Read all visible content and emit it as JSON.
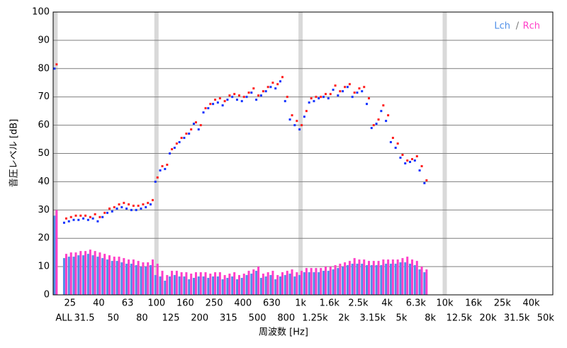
{
  "chart_data": {
    "type": "spectrum",
    "x_label": "周波数 [Hz]",
    "y_label": "音圧レベル [dB]",
    "xlim": [
      -0.5,
      103.5
    ],
    "ylim": [
      0,
      100
    ],
    "yticks": [
      0,
      10,
      20,
      30,
      40,
      50,
      60,
      70,
      80,
      90,
      100
    ],
    "xticks": [
      {
        "value": 0,
        "label": "ALL"
      },
      {
        "value": 3,
        "label": "25"
      },
      {
        "value": 6,
        "label": "31.5"
      },
      {
        "value": 9,
        "label": "40"
      },
      {
        "value": 12,
        "label": "50"
      },
      {
        "value": 15,
        "label": "63"
      },
      {
        "value": 18,
        "label": "80"
      },
      {
        "value": 21,
        "label": "100"
      },
      {
        "value": 24,
        "label": "125"
      },
      {
        "value": 27,
        "label": "160"
      },
      {
        "value": 30,
        "label": "200"
      },
      {
        "value": 33,
        "label": "250"
      },
      {
        "value": 36,
        "label": "315"
      },
      {
        "value": 39,
        "label": "400"
      },
      {
        "value": 42,
        "label": "500"
      },
      {
        "value": 45,
        "label": "630"
      },
      {
        "value": 48,
        "label": "800"
      },
      {
        "value": 51,
        "label": "1k"
      },
      {
        "value": 54,
        "label": "1.25k"
      },
      {
        "value": 57,
        "label": "1.6k"
      },
      {
        "value": 60,
        "label": "2k"
      },
      {
        "value": 63,
        "label": "2.5k"
      },
      {
        "value": 66,
        "label": "3.15k"
      },
      {
        "value": 69,
        "label": "4k"
      },
      {
        "value": 72,
        "label": "5k"
      },
      {
        "value": 75,
        "label": "6.3k"
      },
      {
        "value": 78,
        "label": "8k"
      },
      {
        "value": 81,
        "label": "10k"
      },
      {
        "value": 84,
        "label": "12.5k"
      },
      {
        "value": 87,
        "label": "16k"
      },
      {
        "value": 90,
        "label": "20k"
      },
      {
        "value": 93,
        "label": "25k"
      },
      {
        "value": 96,
        "label": "31.5k"
      },
      {
        "value": 99,
        "label": "40k"
      },
      {
        "value": 102,
        "label": "50k"
      }
    ],
    "xbands": [
      0,
      21,
      51,
      81
    ],
    "band_color": "#d9d9d9",
    "grid": true,
    "legend_separator": "/",
    "legend_position": "top-right",
    "x": [
      0,
      2,
      3,
      4,
      5,
      6,
      7,
      8,
      9,
      10,
      11,
      12,
      13,
      14,
      15,
      16,
      17,
      18,
      19,
      20,
      21,
      22,
      23,
      24,
      25,
      26,
      27,
      28,
      29,
      30,
      31,
      32,
      33,
      34,
      35,
      36,
      37,
      38,
      39,
      40,
      41,
      42,
      43,
      44,
      45,
      46,
      47,
      48,
      49,
      50,
      51,
      52,
      53,
      54,
      55,
      56,
      57,
      58,
      59,
      60,
      61,
      62,
      63,
      64,
      65,
      66,
      67,
      68,
      69,
      70,
      71,
      72,
      73,
      74,
      75,
      76,
      77
    ],
    "series": [
      {
        "name": "Lch",
        "color": "#1030ff",
        "bar_color": "#4f8fe8",
        "values": [
          80,
          25.5,
          26,
          26.5,
          26.5,
          27,
          26.5,
          27,
          26,
          27.5,
          29,
          29.5,
          30.5,
          31,
          30.5,
          30,
          30,
          30.5,
          31,
          32,
          40,
          44,
          44.5,
          50,
          52,
          54,
          55.5,
          57,
          60.5,
          58.5,
          64.5,
          66,
          67.5,
          68,
          67,
          69,
          70,
          69,
          68.5,
          70,
          71.5,
          69,
          70.5,
          72,
          73.5,
          73,
          75.5,
          68.5,
          62,
          60,
          58.5,
          63,
          68,
          68.5,
          69.5,
          70,
          69.5,
          72.5,
          70.5,
          72,
          73.5,
          70,
          71.5,
          72,
          67.5,
          59,
          60.5,
          65,
          61.5,
          54,
          52,
          48.5,
          46.5,
          47,
          47.5,
          44,
          39.5
        ],
        "bar_values": [
          28,
          13,
          13.5,
          13.5,
          14,
          14,
          14.5,
          14,
          13.5,
          13,
          12.5,
          12,
          12,
          11.5,
          11,
          11,
          10.5,
          10,
          10,
          10.5,
          7,
          6.5,
          5,
          6.5,
          7,
          6.5,
          6.5,
          5.5,
          6,
          6.5,
          6.5,
          6,
          6.5,
          6.5,
          5.5,
          6,
          6.5,
          5.5,
          6,
          7,
          7.5,
          8.5,
          6,
          6.5,
          7,
          5.5,
          6.5,
          7,
          7.5,
          6.5,
          7,
          8,
          8,
          8,
          8,
          8.5,
          8.5,
          9,
          9.5,
          10,
          10.5,
          11,
          11,
          11,
          10.5,
          10.5,
          10.5,
          10.5,
          11,
          11,
          11,
          11.5,
          11.5,
          11,
          10.5,
          9,
          8
        ]
      },
      {
        "name": "Rch",
        "color": "#ff1a1a",
        "bar_color": "#ff3fc8",
        "values": [
          81.5,
          27,
          27.5,
          28,
          28,
          28,
          27.5,
          28.5,
          27.5,
          29,
          30.5,
          31,
          32,
          32.5,
          32,
          31.5,
          31.5,
          32,
          32.5,
          33.5,
          41.5,
          45.5,
          46,
          51.5,
          53.5,
          55.5,
          57,
          58.5,
          61,
          60,
          66,
          67.5,
          69,
          69.5,
          68.5,
          70.5,
          71,
          70.5,
          70,
          71.5,
          73,
          70.5,
          72,
          73.5,
          75,
          74.5,
          77,
          70,
          63.5,
          61.5,
          60,
          65,
          69.5,
          70,
          70,
          71,
          71,
          74,
          72,
          73.5,
          74.5,
          71.5,
          73,
          73.5,
          69.5,
          60,
          62,
          67,
          63.5,
          55.5,
          53.5,
          49.5,
          47.5,
          48,
          49,
          45.5,
          40.5
        ],
        "bar_values": [
          30,
          14.5,
          15,
          15,
          15.5,
          15.5,
          16,
          15.5,
          15,
          14.5,
          14,
          13.5,
          13.5,
          13,
          12.5,
          12.5,
          12,
          11.5,
          11.5,
          12.5,
          11,
          8.5,
          7,
          8.5,
          8.5,
          8,
          8,
          7.5,
          8,
          8,
          8,
          7.5,
          8,
          8,
          7,
          7.5,
          8,
          7,
          7.5,
          8.5,
          9,
          10,
          7.5,
          8,
          8.5,
          7,
          8,
          8.5,
          9,
          8,
          8.5,
          9.5,
          9.5,
          9.5,
          9.5,
          10,
          10,
          10.5,
          11,
          11.5,
          12,
          13,
          12.5,
          12.5,
          12,
          12,
          12,
          12.5,
          12.5,
          12.5,
          12.5,
          13,
          13.5,
          12.5,
          12,
          10,
          9
        ]
      }
    ]
  }
}
